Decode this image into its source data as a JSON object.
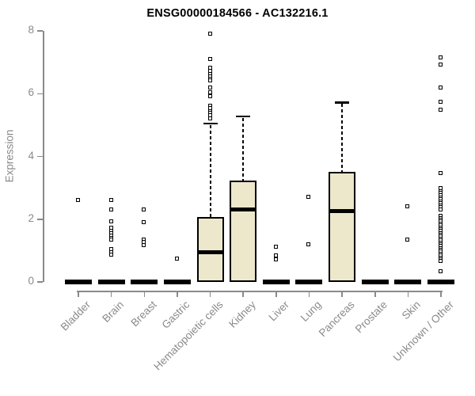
{
  "chart_data": {
    "type": "boxplot",
    "title": "ENSG00000184566 - AC132216.1",
    "ylabel": "Expression",
    "xlabel": "",
    "ylim": [
      0,
      8
    ],
    "yticks": [
      0,
      2,
      4,
      6,
      8
    ],
    "grid": false,
    "legend": "none",
    "colors": {
      "box_fill": "#EDE8CC",
      "box_border": "#000000",
      "median": "#000000",
      "outlier": "#000000",
      "axis": "#8a8a8a",
      "title": "#000000",
      "background": "#ffffff"
    },
    "categories": [
      "Bladder",
      "Brain",
      "Breast",
      "Gastric",
      "Hematopoietic cells",
      "Kidney",
      "Liver",
      "Lung",
      "Pancreas",
      "Prostate",
      "Skin",
      "Unknown / Other"
    ],
    "series": [
      {
        "label": "Bladder",
        "q1": 0,
        "median": 0,
        "q3": 0,
        "whisker_low": 0,
        "whisker_high": 0,
        "outliers": [
          2.6
        ]
      },
      {
        "label": "Brain",
        "q1": 0,
        "median": 0,
        "q3": 0,
        "whisker_low": 0,
        "whisker_high": 0,
        "outliers": [
          2.6,
          2.32,
          1.92,
          1.72,
          1.63,
          1.55,
          1.47,
          1.4,
          1.34,
          1.05,
          0.95,
          0.87
        ]
      },
      {
        "label": "Breast",
        "q1": 0,
        "median": 0,
        "q3": 0,
        "whisker_low": 0,
        "whisker_high": 0,
        "outliers": [
          2.32,
          1.9,
          1.36,
          1.27,
          1.18
        ]
      },
      {
        "label": "Gastric",
        "q1": 0,
        "median": 0,
        "q3": 0,
        "whisker_low": 0,
        "whisker_high": 0,
        "outliers": [
          0.75
        ]
      },
      {
        "label": "Hematopoietic cells",
        "q1": 0,
        "median": 0.95,
        "q3": 2.08,
        "whisker_low": 0,
        "whisker_high": 5.05,
        "outliers": [
          7.9,
          7.1,
          6.82,
          6.72,
          6.63,
          6.55,
          6.47,
          6.42,
          6.2,
          6.05,
          5.93,
          5.62,
          5.53,
          5.45,
          5.38,
          5.3,
          5.22
        ]
      },
      {
        "label": "Kidney",
        "q1": 0,
        "median": 2.32,
        "q3": 3.22,
        "whisker_low": 0,
        "whisker_high": 5.28,
        "outliers": []
      },
      {
        "label": "Liver",
        "q1": 0,
        "median": 0,
        "q3": 0,
        "whisker_low": 0,
        "whisker_high": 0,
        "outliers": [
          1.12,
          0.85,
          0.73
        ]
      },
      {
        "label": "Lung",
        "q1": 0,
        "median": 0,
        "q3": 0,
        "whisker_low": 0,
        "whisker_high": 0,
        "outliers": [
          2.72,
          1.2
        ]
      },
      {
        "label": "Pancreas",
        "q1": 0,
        "median": 2.25,
        "q3": 3.52,
        "whisker_low": 0,
        "whisker_high": 5.72,
        "outliers": []
      },
      {
        "label": "Prostate",
        "q1": 0,
        "median": 0,
        "q3": 0,
        "whisker_low": 0,
        "whisker_high": 0,
        "outliers": []
      },
      {
        "label": "Skin",
        "q1": 0,
        "median": 0,
        "q3": 0,
        "whisker_low": 0,
        "whisker_high": 0,
        "outliers": [
          2.4,
          1.36
        ]
      },
      {
        "label": "Unknown / Other",
        "q1": 0,
        "median": 0,
        "q3": 0,
        "whisker_low": 0,
        "whisker_high": 0,
        "outliers": [
          7.15,
          6.92,
          6.2,
          5.75,
          5.5,
          3.48,
          2.98,
          2.9,
          2.83,
          2.76,
          2.7,
          2.63,
          2.56,
          2.5,
          2.44,
          2.38,
          2.32,
          2.1,
          2.04,
          1.98,
          1.92,
          1.86,
          1.8,
          1.74,
          1.68,
          1.62,
          1.56,
          1.5,
          1.44,
          1.38,
          1.32,
          1.26,
          1.2,
          1.14,
          1.08,
          1.02,
          0.96,
          0.9,
          0.84,
          0.78,
          0.72,
          0.66,
          0.33
        ]
      }
    ]
  }
}
